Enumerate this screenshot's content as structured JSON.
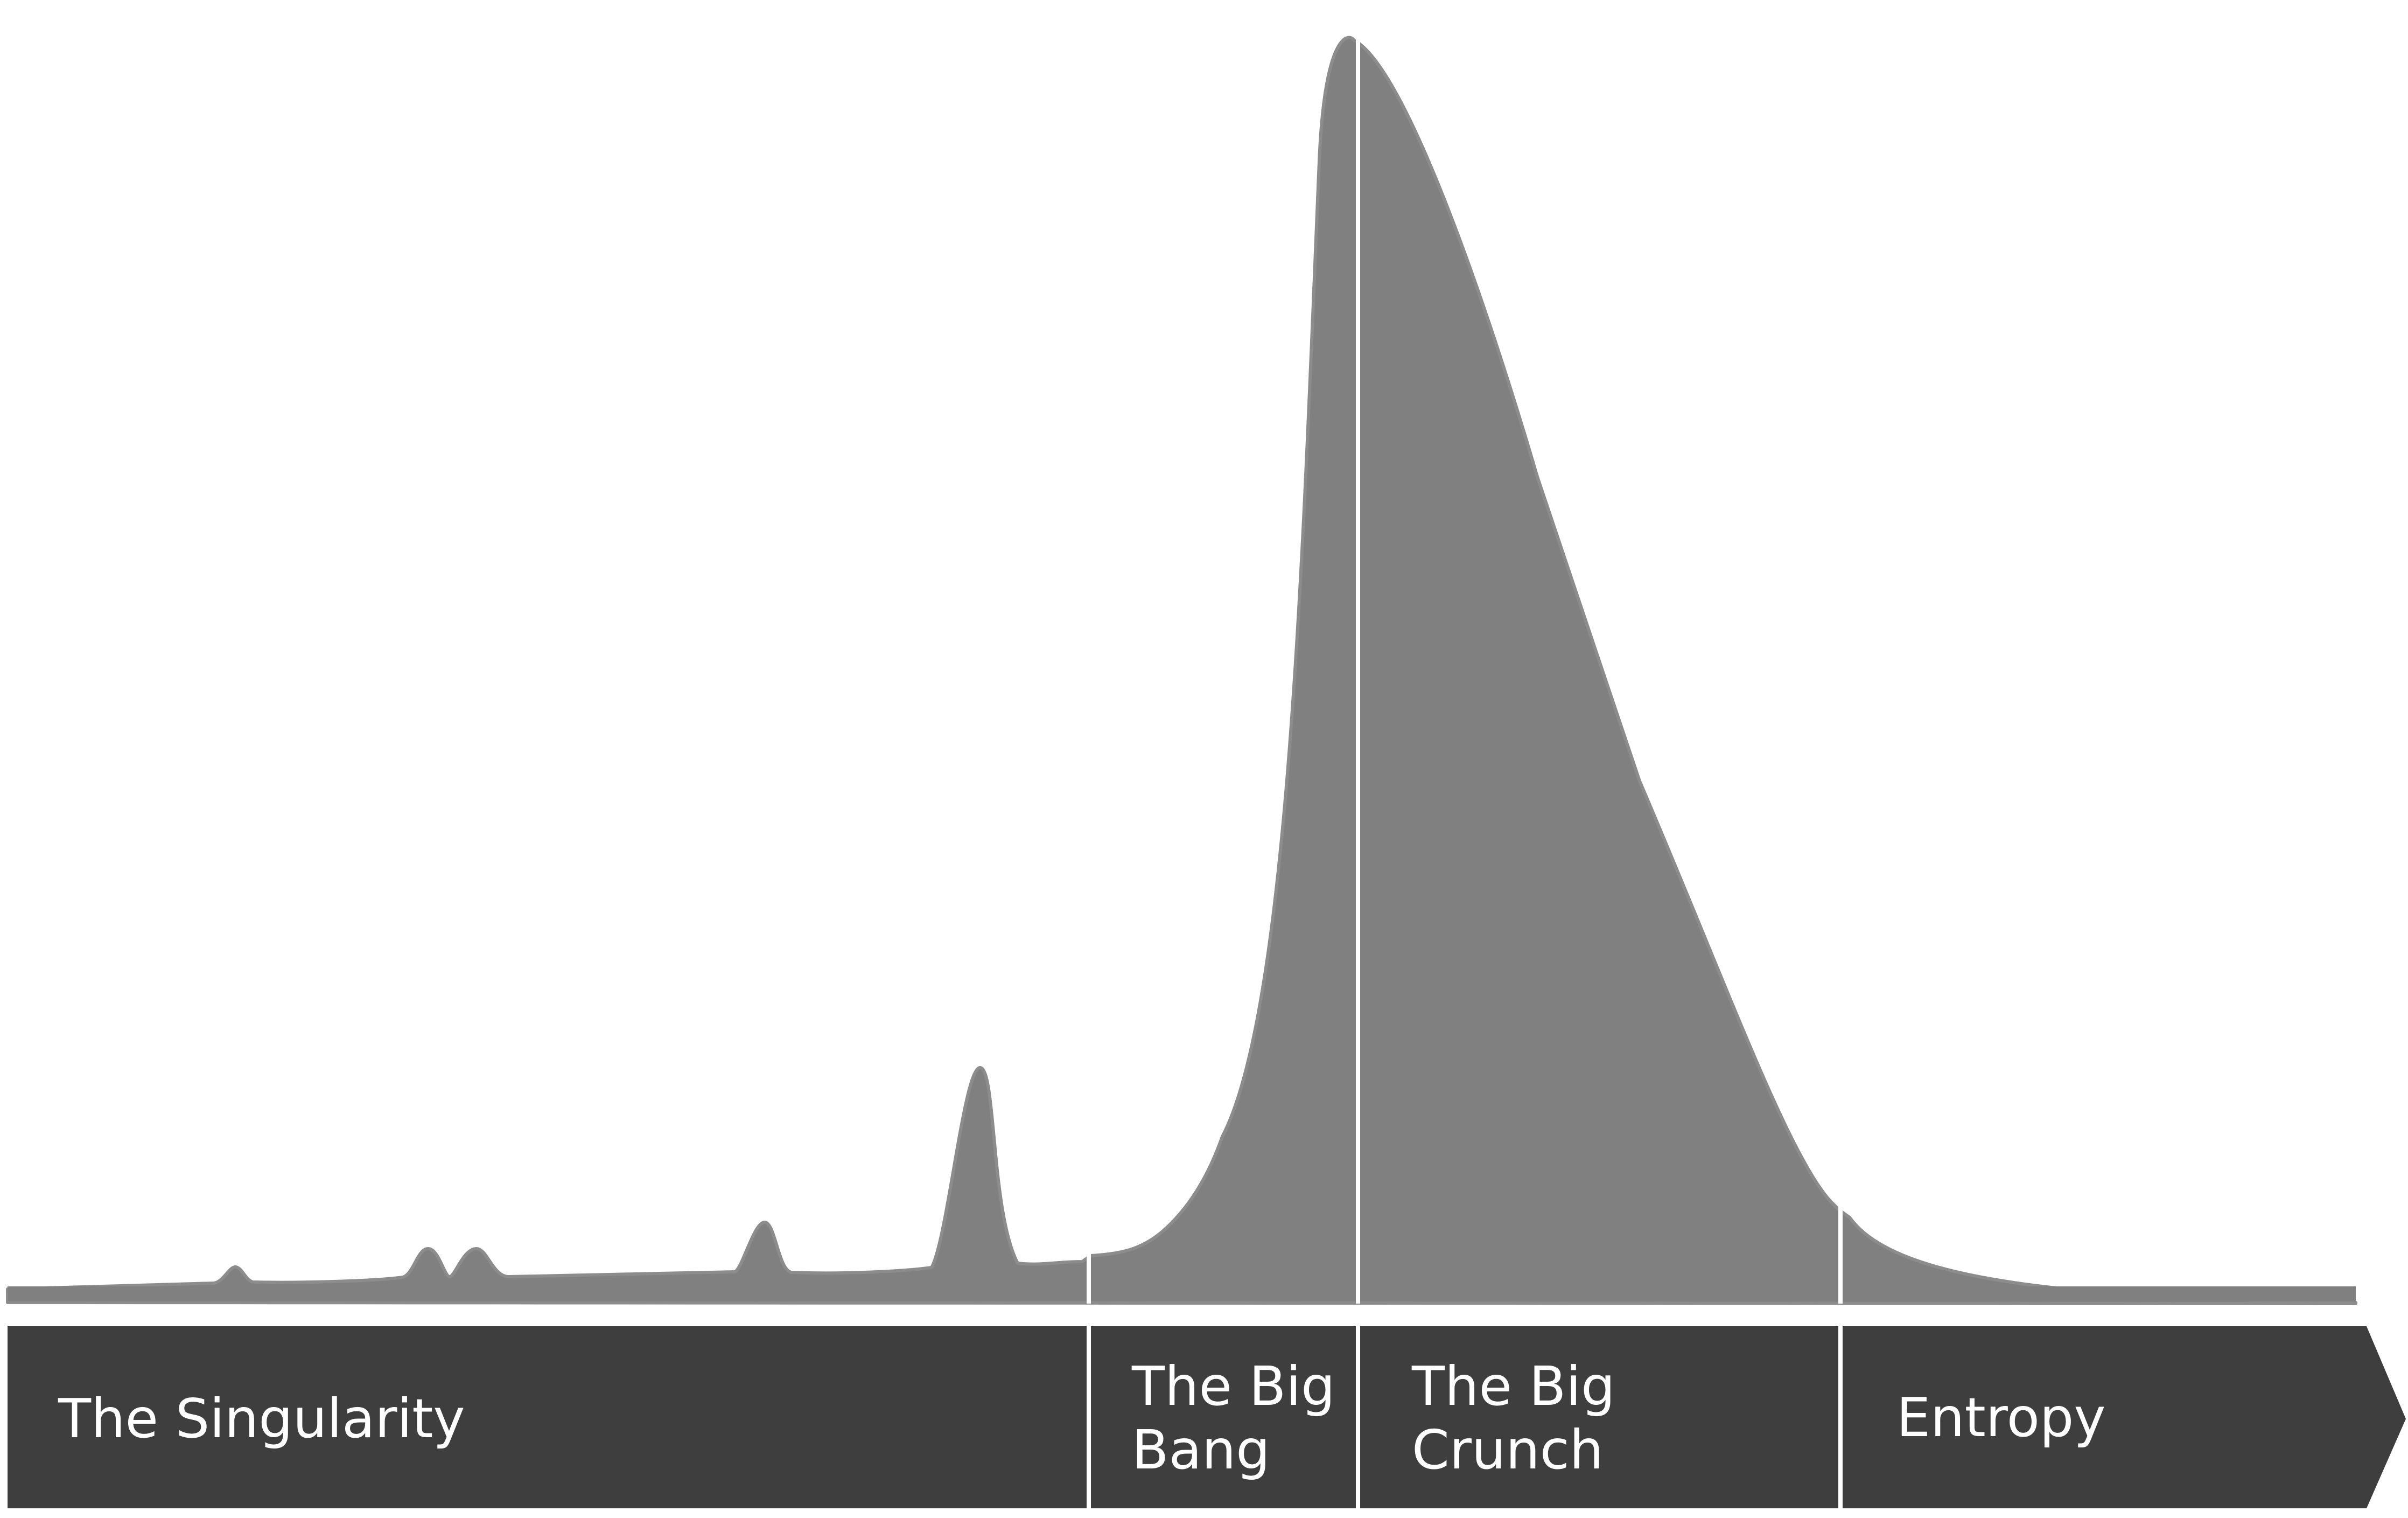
{
  "diagram": {
    "colors": {
      "background": "#ffffff",
      "curve_fill": "#808080",
      "curve_edge": "#8c8c8c",
      "bar_fill": "#3e3e3e",
      "divider": "#ffffff",
      "label_text": "#ffffff"
    },
    "phases": [
      {
        "label_lines": [
          "The Singularity"
        ]
      },
      {
        "label_lines": [
          "The Big",
          "Bang"
        ]
      },
      {
        "label_lines": [
          "The Big",
          "Crunch"
        ]
      },
      {
        "label_lines": [
          "Entropy"
        ]
      }
    ]
  }
}
